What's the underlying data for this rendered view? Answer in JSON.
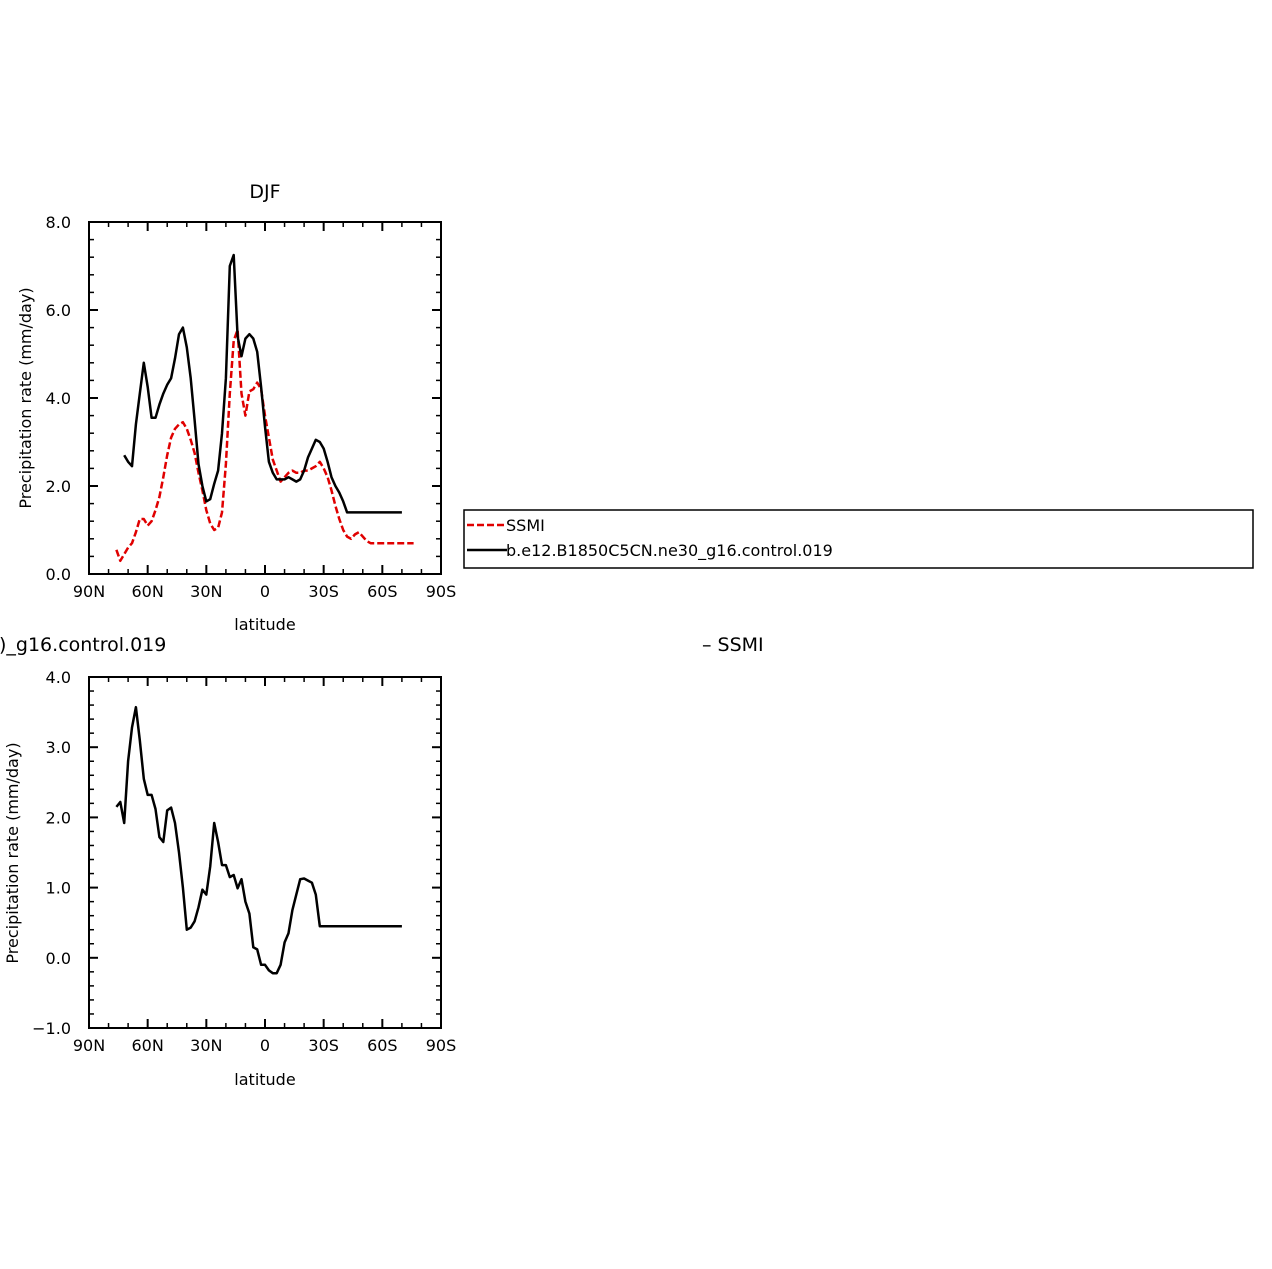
{
  "chart_data": [
    {
      "type": "line",
      "title": "DJF",
      "xlabel": "latitude",
      "ylabel": "Precipitation rate (mm/day)",
      "xlim": [
        90,
        -90
      ],
      "ylim": [
        0,
        8
      ],
      "xticks": [
        90,
        60,
        30,
        0,
        -30,
        -60,
        -90
      ],
      "xtick_labels": [
        "90N",
        "60N",
        "30N",
        "0",
        "30S",
        "60S",
        "90S"
      ],
      "yticks": [
        0,
        2,
        4,
        6,
        8
      ],
      "ytick_labels": [
        "0.0",
        "2.0",
        "4.0",
        "6.0",
        "8.0"
      ],
      "legend_position": "right",
      "series": [
        {
          "name": "SSMI",
          "color": "#e00000",
          "dash": "dashed",
          "x": [
            76,
            74,
            72,
            70,
            68,
            66,
            64,
            62,
            60,
            58,
            56,
            54,
            52,
            50,
            48,
            46,
            44,
            42,
            40,
            38,
            36,
            34,
            32,
            30,
            28,
            26,
            24,
            22,
            20,
            18,
            16,
            14,
            12,
            10,
            8,
            6,
            4,
            2,
            0,
            -2,
            -4,
            -6,
            -8,
            -10,
            -12,
            -14,
            -16,
            -18,
            -20,
            -22,
            -24,
            -26,
            -28,
            -30,
            -32,
            -34,
            -36,
            -38,
            -40,
            -42,
            -44,
            -46,
            -48,
            -50,
            -52,
            -54,
            -56,
            -58,
            -60,
            -62,
            -64,
            -66,
            -68,
            -70,
            -72,
            -74,
            -76
          ],
          "y": [
            0.55,
            0.3,
            0.45,
            0.6,
            0.7,
            0.95,
            1.25,
            1.25,
            1.1,
            1.2,
            1.45,
            1.75,
            2.2,
            2.7,
            3.1,
            3.3,
            3.4,
            3.45,
            3.3,
            3.05,
            2.75,
            2.3,
            1.9,
            1.45,
            1.15,
            1.0,
            1.05,
            1.4,
            2.5,
            4.1,
            5.3,
            5.55,
            4.1,
            3.6,
            4.15,
            4.2,
            4.35,
            4.2,
            3.6,
            3.1,
            2.6,
            2.35,
            2.1,
            2.2,
            2.3,
            2.35,
            2.3,
            2.3,
            2.35,
            2.35,
            2.4,
            2.45,
            2.55,
            2.4,
            2.2,
            1.9,
            1.55,
            1.25,
            1.0,
            0.85,
            0.8,
            0.9,
            0.95,
            0.85,
            0.75,
            0.7,
            0.7,
            0.7,
            0.7,
            0.7,
            0.7,
            0.7,
            0.7,
            0.7,
            0.7,
            0.7,
            0.7
          ]
        },
        {
          "name": "b.e12.B1850C5CN.ne30_g16.control.019",
          "color": "#000000",
          "dash": "solid",
          "x": [
            72,
            70,
            68,
            66,
            64,
            62,
            60,
            58,
            56,
            54,
            52,
            50,
            48,
            46,
            44,
            42,
            40,
            38,
            36,
            34,
            32,
            30,
            28,
            26,
            24,
            22,
            20,
            18,
            16,
            14,
            12,
            10,
            8,
            6,
            4,
            2,
            0,
            -2,
            -4,
            -6,
            -8,
            -10,
            -12,
            -14,
            -16,
            -18,
            -20,
            -22,
            -24,
            -26,
            -28,
            -30,
            -32,
            -34,
            -36,
            -38,
            -40,
            -42,
            -44,
            -46,
            -48,
            -50,
            -52,
            -54,
            -56,
            -58,
            -60,
            -62,
            -64,
            -66,
            -68,
            -70
          ],
          "y": [
            2.7,
            2.55,
            2.45,
            3.4,
            4.1,
            4.8,
            4.25,
            3.55,
            3.55,
            3.85,
            4.1,
            4.3,
            4.45,
            4.9,
            5.45,
            5.6,
            5.15,
            4.45,
            3.5,
            2.5,
            2.0,
            1.65,
            1.7,
            2.05,
            2.35,
            3.2,
            4.45,
            7.0,
            7.25,
            5.4,
            4.95,
            5.35,
            5.45,
            5.35,
            5.05,
            4.25,
            3.35,
            2.55,
            2.3,
            2.15,
            2.15,
            2.15,
            2.2,
            2.15,
            2.1,
            2.15,
            2.35,
            2.65,
            2.85,
            3.05,
            3.0,
            2.85,
            2.55,
            2.2,
            2.0,
            1.85,
            1.65,
            1.4,
            1.4,
            1.4,
            1.4,
            1.4,
            1.4,
            1.4,
            1.4,
            1.4,
            1.4,
            1.4,
            1.4,
            1.4,
            1.4,
            1.4
          ]
        }
      ]
    },
    {
      "type": "line",
      "title": ")_g16.control.019",
      "title_right": "– SSMI",
      "xlabel": "latitude",
      "ylabel": "Precipitation rate (mm/day)",
      "xlim": [
        90,
        -90
      ],
      "ylim": [
        -1,
        4
      ],
      "xticks": [
        90,
        60,
        30,
        0,
        -30,
        -60,
        -90
      ],
      "xtick_labels": [
        "90N",
        "60N",
        "30N",
        "0",
        "30S",
        "60S",
        "90S"
      ],
      "yticks": [
        -1,
        0,
        1,
        2,
        3,
        4
      ],
      "ytick_labels": [
        "-1.0",
        "0.0",
        "1.0",
        "2.0",
        "3.0",
        "4.0"
      ],
      "series": [
        {
          "color": "#000000",
          "dash": "solid",
          "x": [
            76,
            74,
            72,
            70,
            68,
            66,
            64,
            62,
            60,
            58,
            56,
            54,
            52,
            50,
            48,
            46,
            44,
            42,
            40,
            38,
            36,
            34,
            32,
            30,
            28,
            26,
            24,
            22,
            20,
            18,
            16,
            14,
            12,
            10,
            8,
            6,
            4,
            2,
            0,
            -2,
            -4,
            -6,
            -8,
            -10,
            -12,
            -14,
            -16,
            -18,
            -20,
            -22,
            -24,
            -26,
            -28,
            -30,
            -32,
            -34,
            -36,
            -38,
            -40,
            -42,
            -44,
            -46,
            -48,
            -50,
            -52,
            -54,
            -56,
            -58,
            -60,
            -62,
            -64,
            -66,
            -68,
            -70
          ],
          "y": [
            2.15,
            2.22,
            1.92,
            2.8,
            3.28,
            3.57,
            3.1,
            2.55,
            2.32,
            2.32,
            2.12,
            1.72,
            1.65,
            2.1,
            2.14,
            1.92,
            1.5,
            1.0,
            0.4,
            0.43,
            0.52,
            0.72,
            0.97,
            0.9,
            1.3,
            1.92,
            1.65,
            1.32,
            1.32,
            1.15,
            1.18,
            0.99,
            1.12,
            0.8,
            0.63,
            0.15,
            0.12,
            -0.1,
            -0.1,
            -0.18,
            -0.22,
            -0.22,
            -0.1,
            0.22,
            0.35,
            0.68,
            0.9,
            1.12,
            1.13,
            1.1,
            1.07,
            0.9,
            0.45,
            0.45,
            0.45,
            0.45,
            0.45,
            0.45,
            0.45,
            0.45,
            0.45,
            0.45,
            0.45,
            0.45,
            0.45,
            0.45,
            0.45,
            0.45,
            0.45,
            0.45,
            0.45,
            0.45,
            0.45,
            0.45
          ]
        }
      ]
    }
  ],
  "colors": {
    "ssmi": "#e00000",
    "model": "#000000",
    "axis": "#000000",
    "background": "#ffffff"
  }
}
